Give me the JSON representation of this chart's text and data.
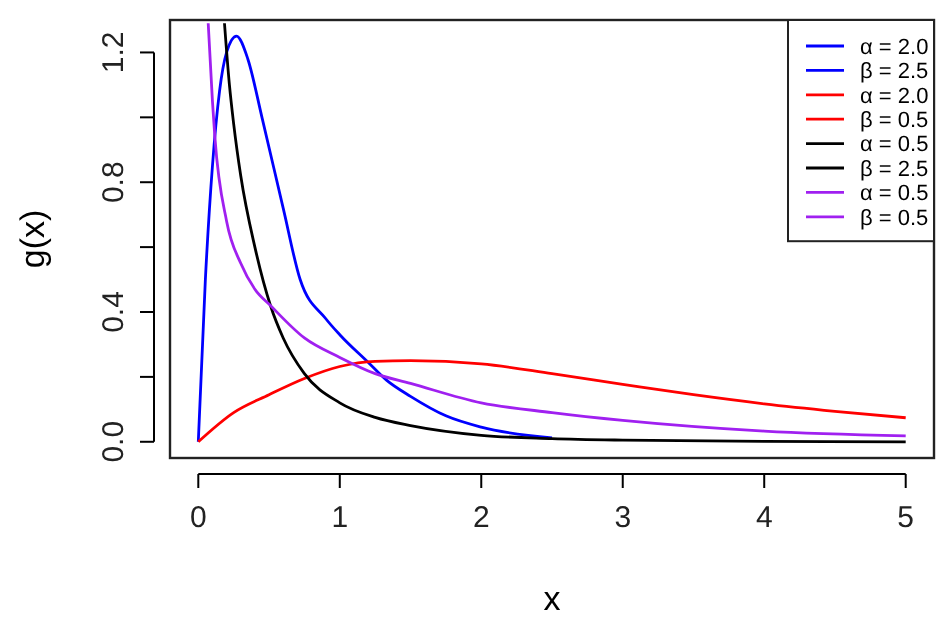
{
  "chart_data": {
    "type": "line",
    "xlabel": "x",
    "ylabel": "g(x)",
    "xlim": [
      -0.2,
      5.2
    ],
    "ylim": [
      -0.05,
      1.3
    ],
    "xticks": [
      0,
      1,
      2,
      3,
      4,
      5
    ],
    "yticks": [
      {
        "value": 0,
        "label": "0.0"
      },
      {
        "value": 0.2,
        "label": null
      },
      {
        "value": 0.4,
        "label": "0.4"
      },
      {
        "value": 0.6,
        "label": null
      },
      {
        "value": 0.8,
        "label": "0.8"
      },
      {
        "value": 1.0,
        "label": null
      },
      {
        "value": 1.2,
        "label": "1.2"
      }
    ],
    "grid": false,
    "legend": "top right",
    "marker": "none",
    "line_style": "solid",
    "series": [
      {
        "name": "α = 2.0\nβ = 2.5",
        "color": "#0000ff",
        "x": [
          0,
          0.05,
          0.1,
          0.15,
          0.2,
          0.27,
          0.35,
          0.45,
          0.6,
          0.72,
          0.9,
          1.0,
          1.2,
          1.33,
          1.5,
          1.75,
          2.0,
          2.5
        ],
        "values": [
          0,
          0.5,
          0.85,
          1.08,
          1.2,
          1.25,
          1.18,
          1.0,
          0.72,
          0.5,
          0.38,
          0.33,
          0.245,
          0.19,
          0.14,
          0.08,
          0.045,
          0.012
        ]
      },
      {
        "name": "α = 2.0\nβ = 0.5",
        "color": "#ff0000",
        "x": [
          0,
          0.25,
          0.5,
          0.75,
          1,
          1.25,
          1.5,
          2,
          2.5,
          3,
          3.5,
          4,
          4.5,
          5
        ],
        "values": [
          0,
          0.09,
          0.145,
          0.195,
          0.232,
          0.248,
          0.25,
          0.24,
          0.21,
          0.177,
          0.145,
          0.117,
          0.094,
          0.074
        ]
      },
      {
        "name": "α = 0.5\nβ = 2.5",
        "color": "#000000",
        "x": [
          0.185,
          0.22,
          0.25,
          0.3,
          0.4,
          0.51,
          0.6,
          0.75,
          1,
          1.25,
          1.5,
          2,
          2.5,
          3,
          4,
          5
        ],
        "values": [
          1.29,
          1.1,
          0.98,
          0.82,
          0.6,
          0.42,
          0.32,
          0.21,
          0.12,
          0.075,
          0.05,
          0.02,
          0.01,
          0.005,
          0.001,
          0
        ]
      },
      {
        "name": "α = 0.5\nβ = 0.5",
        "color": "#a020f0",
        "x": [
          0.07,
          0.1,
          0.117,
          0.2,
          0.3,
          0.4,
          0.51,
          0.75,
          1,
          1.25,
          1.5,
          2,
          2.5,
          3,
          4,
          5
        ],
        "values": [
          1.29,
          1.05,
          0.94,
          0.68,
          0.55,
          0.47,
          0.42,
          0.32,
          0.26,
          0.21,
          0.18,
          0.12,
          0.09,
          0.066,
          0.033,
          0.018
        ]
      }
    ]
  }
}
